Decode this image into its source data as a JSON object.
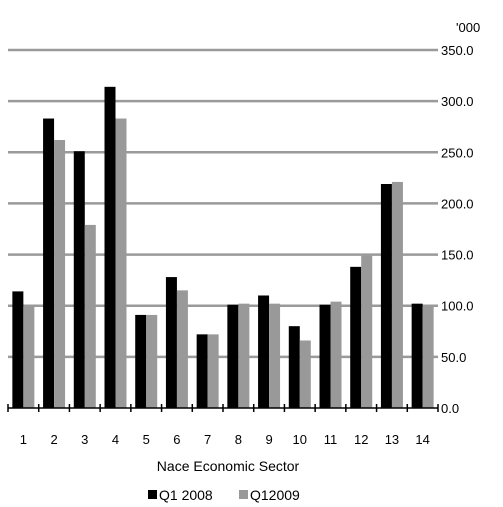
{
  "chart_data": {
    "type": "bar",
    "unit_label": "'000",
    "xlabel": "Nace Economic Sector",
    "ylabel": "",
    "ylim": [
      0,
      350
    ],
    "yticks": [
      0,
      50,
      100,
      150,
      200,
      250,
      300,
      350
    ],
    "ytick_labels": [
      "0.0",
      "50.0",
      "100.0",
      "150.0",
      "200.0",
      "250.0",
      "300.0",
      "350.0"
    ],
    "y_axis_side": "right",
    "grid": true,
    "legend_position": "bottom",
    "categories": [
      "1",
      "2",
      "3",
      "4",
      "5",
      "6",
      "7",
      "8",
      "9",
      "10",
      "11",
      "12",
      "13",
      "14"
    ],
    "series": [
      {
        "name": "Q1 2008",
        "color": "#000000",
        "values": [
          114,
          283,
          251,
          314,
          91,
          128,
          72,
          101,
          110,
          80,
          101,
          138,
          219,
          102
        ]
      },
      {
        "name": "Q12009",
        "color": "#999999",
        "values": [
          100,
          262,
          179,
          283,
          91,
          115,
          72,
          102,
          102,
          66,
          104,
          149,
          221,
          100
        ]
      }
    ]
  }
}
